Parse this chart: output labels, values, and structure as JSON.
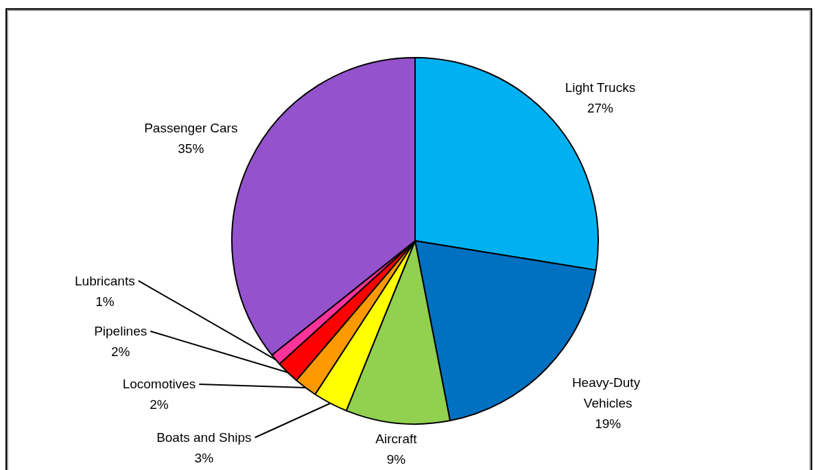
{
  "chart_data": {
    "type": "pie",
    "categories": [
      "Light Trucks",
      "Heavy-Duty Vehicles",
      "Aircraft",
      "Boats and Ships",
      "Locomotives",
      "Pipelines",
      "Lubricants",
      "Passenger Cars"
    ],
    "values": [
      27,
      19,
      9,
      3,
      2,
      2,
      1,
      35
    ],
    "colors": [
      "#00b0f0",
      "#0070c0",
      "#92d050",
      "#ffff00",
      "#ff9900",
      "#ff0000",
      "#ff3399",
      "#9453cd"
    ],
    "value_labels": [
      "27%",
      "19%",
      "9%",
      "3%",
      "2%",
      "2%",
      "1%",
      "35%"
    ]
  }
}
